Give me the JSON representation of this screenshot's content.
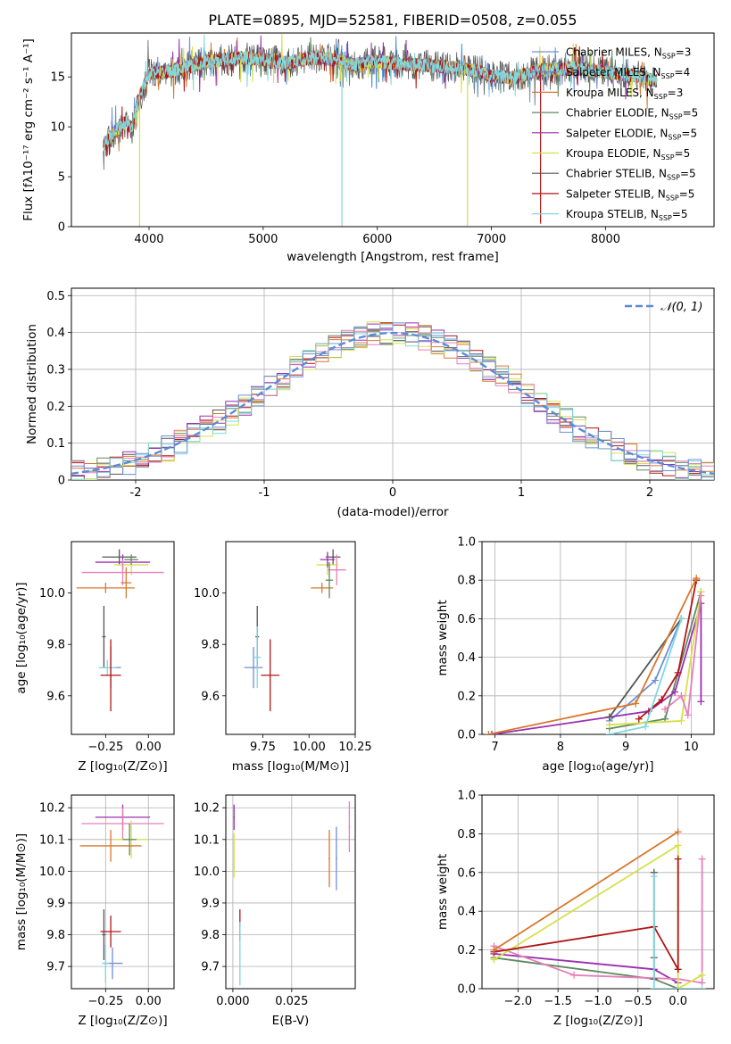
{
  "figure_title": "PLATE=0895, MJD=52581, FIBERID=0508, z=0.055",
  "colors": {
    "chabrier_miles": "#6f8fd8",
    "salpeter_miles": "#4f8ed0",
    "kroupa_miles": "#d9772b",
    "chabrier_elodie": "#5f8a5f",
    "salpeter_elodie": "#9a2fb0",
    "kroupa_elodie": "#d6e04a",
    "chabrier_stelib": "#555555",
    "salpeter_stelib": "#b11616",
    "kroupa_stelib": "#7fd8de",
    "pink": "#e67fb8",
    "normal_curve": "#5b8bd8"
  },
  "chart_data": [
    {
      "id": "spectrum",
      "type": "line",
      "title": "",
      "xlabel": "wavelength [Angstrom, rest frame]",
      "ylabel": "Flux [fλ10⁻¹⁷ erg cm⁻² s⁻¹ A⁻¹]",
      "xlim": [
        3320,
        8950
      ],
      "ylim": [
        0,
        19.4
      ],
      "xticks": [
        4000,
        5000,
        6000,
        7000,
        8000
      ],
      "yticks": [
        0,
        5,
        10,
        15
      ],
      "grid": false,
      "legend_position": "top-right",
      "legend": [
        {
          "label": "Chabrier MILES, N",
          "sub": "SSP",
          "tail": "=3",
          "color": "#6f8fd8"
        },
        {
          "label": "Salpeter MILES, N",
          "sub": "SSP",
          "tail": "=4",
          "color": "#4f8ed0"
        },
        {
          "label": "Kroupa MILES, N",
          "sub": "SSP",
          "tail": "=3",
          "color": "#d9772b"
        },
        {
          "label": "Chabrier ELODIE, N",
          "sub": "SSP",
          "tail": "=5",
          "color": "#5f8a5f"
        },
        {
          "label": "Salpeter ELODIE, N",
          "sub": "SSP",
          "tail": "=5",
          "color": "#9a2fb0"
        },
        {
          "label": "Kroupa ELODIE, N",
          "sub": "SSP",
          "tail": "=5",
          "color": "#d6e04a"
        },
        {
          "label": "Chabrier STELIB, N",
          "sub": "SSP",
          "tail": "=5",
          "color": "#555555"
        },
        {
          "label": "Salpeter STELIB, N",
          "sub": "SSP",
          "tail": "=5",
          "color": "#b11616"
        },
        {
          "label": "Kroupa STELIB, N",
          "sub": "SSP",
          "tail": "=5",
          "color": "#7fd8de"
        }
      ],
      "continuum": [
        [
          3600,
          8.2
        ],
        [
          3700,
          9.5
        ],
        [
          3800,
          10.5
        ],
        [
          3850,
          9.8
        ],
        [
          3900,
          12.5
        ],
        [
          4000,
          15.3
        ],
        [
          4200,
          15.6
        ],
        [
          4500,
          16.5
        ],
        [
          4800,
          16.9
        ],
        [
          5000,
          16.8
        ],
        [
          5200,
          16.4
        ],
        [
          5400,
          16.9
        ],
        [
          5600,
          16.8
        ],
        [
          5800,
          16.2
        ],
        [
          6000,
          16.6
        ],
        [
          6200,
          16.3
        ],
        [
          6500,
          16.1
        ],
        [
          6700,
          15.9
        ],
        [
          6900,
          15.5
        ],
        [
          7000,
          15.1
        ],
        [
          7200,
          14.9
        ],
        [
          7400,
          15.6
        ],
        [
          7700,
          15.9
        ],
        [
          8000,
          15.5
        ],
        [
          8300,
          15.0
        ],
        [
          8450,
          14.6
        ]
      ],
      "noise_x_range": [
        3600,
        8450
      ],
      "drop_lines": [
        {
          "x": 3918,
          "color": "#d6e04a",
          "bottom": 0
        },
        {
          "x": 5690,
          "color": "#7fd8de",
          "bottom": 0
        },
        {
          "x": 6790,
          "color": "#d6e04a",
          "bottom": 0
        },
        {
          "x": 7430,
          "color": "#b11616",
          "bottom": 0.3
        }
      ]
    },
    {
      "id": "residuals",
      "type": "histogram",
      "xlabel": "(data-model)/error",
      "ylabel": "Normed distribution",
      "xlim": [
        -2.5,
        2.5
      ],
      "ylim": [
        0,
        0.52
      ],
      "xticks": [
        -2,
        -1,
        0,
        1,
        2
      ],
      "yticks": [
        0,
        0.1,
        0.2,
        0.3,
        0.4,
        0.5
      ],
      "grid": true,
      "legend_position": "top-right",
      "legend": [
        {
          "label": "𝒩(0, 1)",
          "color": "#5b8bd8",
          "dashed": true
        }
      ],
      "bin_width": 0.1,
      "bin_start": -2.5,
      "series": [
        {
          "color": "#555555",
          "seed": 3
        },
        {
          "color": "#b11616",
          "seed": 7
        },
        {
          "color": "#9a2fb0",
          "seed": 11
        },
        {
          "color": "#d9772b",
          "seed": 17
        },
        {
          "color": "#5f8a5f",
          "seed": 23
        },
        {
          "color": "#d6e04a",
          "seed": 29
        },
        {
          "color": "#e67fb8",
          "seed": 31
        },
        {
          "color": "#7fd8de",
          "seed": 37
        },
        {
          "color": "#6f8fd8",
          "seed": 41
        }
      ]
    },
    {
      "id": "z_vs_age",
      "type": "errorbar",
      "xlabel": "Z [log₁₀(Z/Z⊙)]",
      "ylabel": "age  [log₁₀(age/yr)]",
      "xlim": [
        -0.45,
        0.15
      ],
      "ylim": [
        9.45,
        10.2
      ],
      "xticks": [
        -0.25,
        0.0
      ],
      "xticklabels": [
        "−0.25",
        "0.00"
      ],
      "yticks": [
        9.6,
        9.8,
        10.0
      ],
      "yticklabels": [
        "9.6",
        "9.8",
        "10.0"
      ],
      "grid": false,
      "points": [
        {
          "x": -0.17,
          "xerr": 0.1,
          "y": 10.14,
          "yerr": 0.03,
          "color": "#555555"
        },
        {
          "x": -0.15,
          "xerr": 0.16,
          "y": 10.12,
          "yerr": 0.03,
          "color": "#9a2fb0"
        },
        {
          "x": -0.1,
          "xerr": 0.1,
          "y": 10.11,
          "yerr": 0.04,
          "color": "#d6e04a"
        },
        {
          "x": -0.1,
          "xerr": 0.04,
          "y": 10.13,
          "yerr": 0.02,
          "color": "#5f8a5f"
        },
        {
          "x": -0.15,
          "xerr": 0.24,
          "y": 10.08,
          "yerr": 0.05,
          "color": "#e67fb8"
        },
        {
          "x": -0.25,
          "xerr": 0.17,
          "y": 10.02,
          "yerr": 0.02,
          "color": "#d9772b"
        },
        {
          "x": -0.13,
          "xerr": 0.03,
          "y": 10.04,
          "yerr": 0.06,
          "color": "#d9772b"
        },
        {
          "x": -0.26,
          "xerr": 0.01,
          "y": 9.83,
          "yerr": 0.12,
          "color": "#555555"
        },
        {
          "x": -0.22,
          "xerr": 0.06,
          "y": 9.71,
          "yerr": 0.08,
          "color": "#6f8fd8"
        },
        {
          "x": -0.24,
          "xerr": 0.05,
          "y": 9.71,
          "yerr": 0.03,
          "color": "#7fd8de"
        },
        {
          "x": -0.22,
          "xerr": 0.06,
          "y": 9.68,
          "yerr": 0.14,
          "color": "#b11616"
        }
      ]
    },
    {
      "id": "mass_vs_age",
      "type": "errorbar",
      "xlabel": "mass [log₁₀(M/M⊙)]",
      "ylabel": "",
      "xlim": [
        9.55,
        10.25
      ],
      "ylim": [
        9.45,
        10.2
      ],
      "xticks": [
        9.75,
        10.0,
        10.25
      ],
      "xticklabels": [
        "9.75",
        "10.00",
        "10.25"
      ],
      "yticks": [
        9.6,
        9.8,
        10.0
      ],
      "yticklabels": [
        "9.6",
        "9.8",
        "10.0"
      ],
      "grid": false,
      "points": [
        {
          "x": 10.13,
          "xerr": 0.04,
          "y": 10.14,
          "yerr": 0.03,
          "color": "#555555"
        },
        {
          "x": 10.15,
          "xerr": 0.05,
          "y": 10.09,
          "yerr": 0.06,
          "color": "#e67fb8"
        },
        {
          "x": 10.1,
          "xerr": 0.06,
          "y": 10.11,
          "yerr": 0.04,
          "color": "#d6e04a"
        },
        {
          "x": 10.1,
          "xerr": 0.04,
          "y": 10.13,
          "yerr": 0.03,
          "color": "#9a2fb0"
        },
        {
          "x": 10.07,
          "xerr": 0.06,
          "y": 10.02,
          "yerr": 0.02,
          "color": "#d9772b"
        },
        {
          "x": 10.11,
          "xerr": 0.02,
          "y": 10.05,
          "yerr": 0.07,
          "color": "#5f8a5f"
        },
        {
          "x": 9.72,
          "xerr": 0.01,
          "y": 9.83,
          "yerr": 0.12,
          "color": "#555555"
        },
        {
          "x": 9.7,
          "xerr": 0.05,
          "y": 9.71,
          "yerr": 0.08,
          "color": "#6f8fd8"
        },
        {
          "x": 9.72,
          "xerr": 0.02,
          "y": 9.75,
          "yerr": 0.12,
          "color": "#7fd8de"
        },
        {
          "x": 9.79,
          "xerr": 0.05,
          "y": 9.68,
          "yerr": 0.14,
          "color": "#b11616"
        }
      ]
    },
    {
      "id": "age_vs_weight",
      "type": "line",
      "xlabel": "age  [log₁₀(age/yr)]",
      "ylabel": "mass weight",
      "xlim": [
        6.8,
        10.35
      ],
      "ylim": [
        0,
        1.0
      ],
      "xticks": [
        7,
        8,
        9,
        10
      ],
      "xticklabels": [
        "7",
        "8",
        "9",
        "10"
      ],
      "yticks": [
        0,
        0.2,
        0.4,
        0.6,
        0.8,
        1.0
      ],
      "yticklabels": [
        "0.0",
        "0.2",
        "0.4",
        "0.6",
        "0.8",
        "1.0"
      ],
      "grid": true,
      "series": [
        {
          "color": "#6f8fd8",
          "points": [
            [
              8.75,
              0.07
            ],
            [
              9.45,
              0.28
            ],
            [
              9.85,
              0.6
            ]
          ]
        },
        {
          "color": "#5f8a5f",
          "points": [
            [
              8.75,
              0.03
            ],
            [
              9.6,
              0.08
            ],
            [
              10.15,
              0.74
            ]
          ]
        },
        {
          "color": "#9a2fb0",
          "points": [
            [
              6.95,
              0.0
            ],
            [
              9.35,
              0.12
            ],
            [
              9.75,
              0.22
            ],
            [
              10.15,
              0.68
            ],
            [
              10.15,
              0.17
            ]
          ]
        },
        {
          "color": "#d6e04a",
          "points": [
            [
              8.75,
              0.05
            ],
            [
              9.85,
              0.07
            ],
            [
              10.15,
              0.74
            ]
          ]
        },
        {
          "color": "#b11616",
          "points": [
            [
              9.2,
              0.08
            ],
            [
              9.55,
              0.18
            ],
            [
              9.8,
              0.32
            ],
            [
              10.08,
              0.8
            ]
          ]
        },
        {
          "color": "#e67fb8",
          "points": [
            [
              9.6,
              0.13
            ],
            [
              9.85,
              0.2
            ],
            [
              9.95,
              0.1
            ],
            [
              10.15,
              0.72
            ]
          ]
        },
        {
          "color": "#555555",
          "points": [
            [
              8.75,
              0.09
            ],
            [
              9.85,
              0.6
            ]
          ]
        },
        {
          "color": "#7fd8de",
          "points": [
            [
              8.75,
              0.0
            ],
            [
              9.3,
              0.04
            ],
            [
              9.85,
              0.6
            ]
          ]
        },
        {
          "color": "#d9772b",
          "points": [
            [
              6.9,
              0.0
            ],
            [
              9.15,
              0.16
            ],
            [
              10.08,
              0.81
            ]
          ]
        }
      ]
    },
    {
      "id": "z_vs_mass",
      "type": "errorbar",
      "xlabel": "Z [log₁₀(Z/Z⊙)]",
      "ylabel": "mass [log₁₀(M/M⊙)]",
      "xlim": [
        -0.45,
        0.15
      ],
      "ylim": [
        9.63,
        10.24
      ],
      "xticks": [
        -0.25,
        0.0
      ],
      "xticklabels": [
        "−0.25",
        "0.00"
      ],
      "yticks": [
        9.7,
        9.8,
        9.9,
        10.0,
        10.1,
        10.2
      ],
      "yticklabels": [
        "9.7",
        "9.8",
        "9.9",
        "10.0",
        "10.1",
        "10.2"
      ],
      "grid": true,
      "points": [
        {
          "x": -0.15,
          "xerr": 0.16,
          "y": 10.17,
          "yerr": 0.04,
          "color": "#9a2fb0"
        },
        {
          "x": -0.15,
          "xerr": 0.24,
          "y": 10.15,
          "yerr": 0.05,
          "color": "#e67fb8"
        },
        {
          "x": -0.1,
          "xerr": 0.1,
          "y": 10.1,
          "yerr": 0.06,
          "color": "#d6e04a"
        },
        {
          "x": -0.11,
          "xerr": 0.04,
          "y": 10.1,
          "yerr": 0.05,
          "color": "#5f8a5f"
        },
        {
          "x": -0.22,
          "xerr": 0.18,
          "y": 10.08,
          "yerr": 0.05,
          "color": "#d9772b"
        },
        {
          "x": -0.26,
          "xerr": 0.01,
          "y": 9.8,
          "yerr": 0.08,
          "color": "#555555"
        },
        {
          "x": -0.22,
          "xerr": 0.06,
          "y": 9.81,
          "yerr": 0.05,
          "color": "#b11616"
        },
        {
          "x": -0.21,
          "xerr": 0.06,
          "y": 9.71,
          "yerr": 0.05,
          "color": "#6f8fd8"
        },
        {
          "x": -0.25,
          "xerr": 0.02,
          "y": 9.71,
          "yerr": 0.06,
          "color": "#7fd8de"
        }
      ]
    },
    {
      "id": "ebv_vs_mass",
      "type": "errorbar",
      "xlabel": "E(B-V)",
      "ylabel": "",
      "xlim": [
        -0.003,
        0.052
      ],
      "ylim": [
        9.63,
        10.24
      ],
      "xticks": [
        0.0,
        0.025
      ],
      "xticklabels": [
        "0.000",
        "0.025"
      ],
      "yticks": [
        9.7,
        9.8,
        9.9,
        10.0,
        10.1,
        10.2
      ],
      "yticklabels": [
        "9.7",
        "9.8",
        "9.9",
        "10.0",
        "10.1",
        "10.2"
      ],
      "grid": true,
      "points": [
        {
          "x": 0.0005,
          "xerr": 0.0003,
          "y": 10.17,
          "yerr": 0.04,
          "color": "#9a2fb0"
        },
        {
          "x": 0.0005,
          "xerr": 0.0003,
          "y": 10.05,
          "yerr": 0.07,
          "color": "#d6e04a"
        },
        {
          "x": 0.003,
          "xerr": 0.0003,
          "y": 9.83,
          "yerr": 0.05,
          "color": "#b11616"
        },
        {
          "x": 0.003,
          "xerr": 0.0003,
          "y": 9.74,
          "yerr": 0.1,
          "color": "#7fd8de"
        },
        {
          "x": 0.041,
          "xerr": 0.0003,
          "y": 10.04,
          "yerr": 0.09,
          "color": "#d9772b"
        },
        {
          "x": 0.044,
          "xerr": 0.0003,
          "y": 10.04,
          "yerr": 0.1,
          "color": "#6f8fd8"
        },
        {
          "x": 0.0495,
          "xerr": 0.0003,
          "y": 10.14,
          "yerr": 0.08,
          "color": "#e67fb8"
        }
      ]
    },
    {
      "id": "z_vs_weight",
      "type": "line",
      "xlabel": "Z [log₁₀(Z/Z⊙)]",
      "ylabel": "mass weight",
      "xlim": [
        -2.45,
        0.45
      ],
      "ylim": [
        0,
        1.0
      ],
      "xticks": [
        -2.0,
        -1.5,
        -1.0,
        -0.5,
        0.0
      ],
      "xticklabels": [
        "−2.0",
        "−1.5",
        "−1.0",
        "−0.5",
        "0.0"
      ],
      "yticks": [
        0,
        0.2,
        0.4,
        0.6,
        0.8,
        1.0
      ],
      "yticklabels": [
        "0.0",
        "0.2",
        "0.4",
        "0.6",
        "0.8",
        "1.0"
      ],
      "grid": true,
      "series": [
        {
          "color": "#5f8a5f",
          "points": [
            [
              -2.3,
              0.16
            ],
            [
              -0.3,
              0.05
            ],
            [
              0.0,
              0.0
            ]
          ]
        },
        {
          "color": "#9a2fb0",
          "points": [
            [
              -2.3,
              0.18
            ],
            [
              -0.3,
              0.1
            ],
            [
              0.0,
              0.03
            ]
          ]
        },
        {
          "color": "#e67fb8",
          "points": [
            [
              -2.3,
              0.22
            ],
            [
              -1.3,
              0.07
            ],
            [
              0.0,
              0.05
            ],
            [
              0.3,
              0.03
            ],
            [
              0.3,
              0.67
            ]
          ]
        },
        {
          "color": "#d6e04a",
          "points": [
            [
              -2.3,
              0.15
            ],
            [
              0.0,
              0.74
            ],
            [
              0.0,
              0.0
            ],
            [
              0.3,
              0.07
            ]
          ]
        },
        {
          "color": "#b11616",
          "points": [
            [
              -2.3,
              0.19
            ],
            [
              -0.3,
              0.32
            ],
            [
              0.0,
              0.1
            ],
            [
              0.0,
              0.67
            ]
          ]
        },
        {
          "color": "#555555",
          "points": [
            [
              -0.3,
              0.6
            ],
            [
              -0.3,
              0.16
            ],
            [
              -0.3,
              0.05
            ]
          ]
        },
        {
          "color": "#7fd8de",
          "points": [
            [
              -0.3,
              0.58
            ],
            [
              -0.3,
              0.0
            ],
            [
              0.3,
              0.0
            ]
          ]
        },
        {
          "color": "#d9772b",
          "points": [
            [
              -2.3,
              0.2
            ],
            [
              0.0,
              0.81
            ]
          ]
        }
      ]
    }
  ]
}
